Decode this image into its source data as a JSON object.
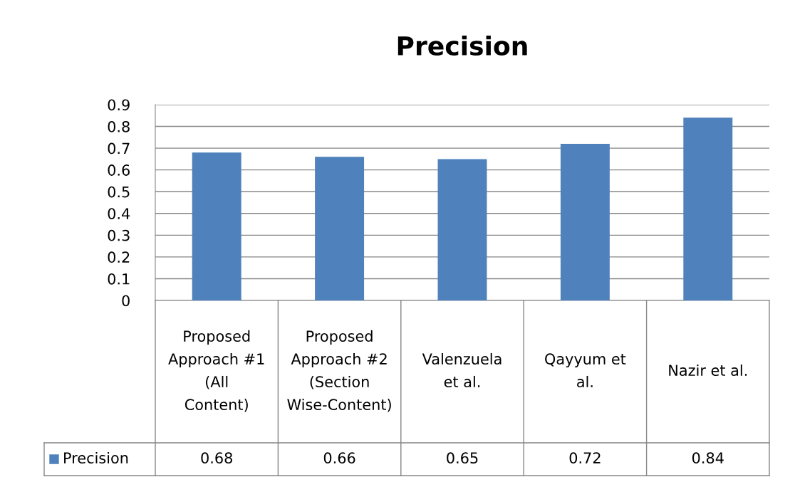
{
  "chart_data": {
    "type": "bar",
    "title": "Precision",
    "categories": [
      "Proposed Approach #1 (All Content)",
      "Proposed Approach #2 (Section Wise-Content)",
      "Valenzuela et al.",
      "Qayyum et al.",
      "Nazir et al."
    ],
    "series": [
      {
        "name": "Precision",
        "color": "#4f81bd",
        "values": [
          0.68,
          0.66,
          0.65,
          0.72,
          0.84
        ]
      }
    ],
    "ylim": [
      0,
      0.9
    ],
    "yticks": [
      0,
      0.1,
      0.2,
      0.3,
      0.4,
      0.5,
      0.6,
      0.7,
      0.8,
      0.9
    ],
    "grid": "y",
    "data_labels": true
  }
}
